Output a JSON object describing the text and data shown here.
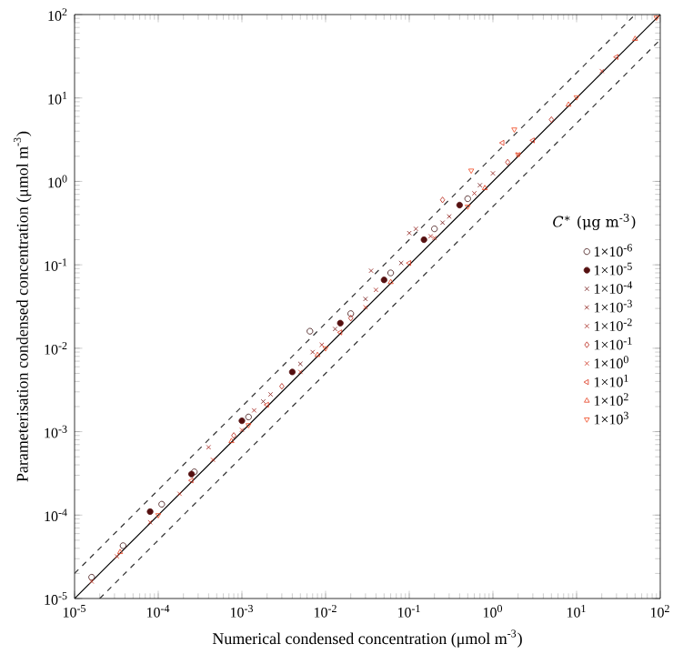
{
  "chart_data": {
    "type": "scatter",
    "xlabel": "Numerical condensed concentration (μmol m$^{-3}$)",
    "ylabel": "Parameterisation condensed concentration (μmol m$^{-3}$)",
    "legend_title": "*C*$^{∗}$ (μg m$^{-3}$)",
    "log": "xy",
    "legend": "right",
    "xlim": [
      1e-05,
      100
    ],
    "ylim": [
      1e-05,
      100
    ],
    "xticks": [
      {
        "value": 1e-05,
        "label": "10$^{-5}$"
      },
      {
        "value": 0.0001,
        "label": "10$^{-4}$"
      },
      {
        "value": 0.001,
        "label": "10$^{-3}$"
      },
      {
        "value": 0.01,
        "label": "10$^{-2}$"
      },
      {
        "value": 0.1,
        "label": "10$^{-1}$"
      },
      {
        "value": 1,
        "label": "10$^{0}$"
      },
      {
        "value": 10,
        "label": "10$^{1}$"
      },
      {
        "value": 100,
        "label": "10$^{2}$"
      }
    ],
    "yticks": [
      {
        "value": 1e-05,
        "label": "10$^{-5}$"
      },
      {
        "value": 0.0001,
        "label": "10$^{-4}$"
      },
      {
        "value": 0.001,
        "label": "10$^{-3}$"
      },
      {
        "value": 0.01,
        "label": "10$^{-2}$"
      },
      {
        "value": 0.1,
        "label": "10$^{-1}$"
      },
      {
        "value": 1,
        "label": "10$^{0}$"
      },
      {
        "value": 10,
        "label": "10$^{1}$"
      },
      {
        "value": 100,
        "label": "10$^{2}$"
      }
    ],
    "series": [
      {
        "name": "1×10$^{-6}$",
        "color": "#3a0c0c",
        "marker": "circle",
        "x": [
          1.6e-05,
          3.8e-05,
          0.00011,
          0.00027,
          0.0012,
          0.0065,
          0.02,
          0.06,
          0.2,
          0.5
        ],
        "values": [
          1.8e-05,
          4.3e-05,
          0.000135,
          0.00033,
          0.0015,
          0.016,
          0.026,
          0.08,
          0.27,
          0.62
        ]
      },
      {
        "name": "1×10$^{-5}$",
        "color": "#551010",
        "marker": "circle-filled",
        "x": [
          8e-05,
          0.00025,
          0.001,
          0.004,
          0.015,
          0.05,
          0.15,
          0.4
        ],
        "values": [
          0.00011,
          0.00031,
          0.00135,
          0.0052,
          0.02,
          0.066,
          0.2,
          0.52
        ]
      },
      {
        "name": "1×10$^{-4}$",
        "color": "#701212",
        "marker": "cross",
        "x": [
          0.0018,
          0.005,
          0.013,
          0.03,
          0.08,
          0.25,
          0.7
        ],
        "values": [
          0.0023,
          0.0065,
          0.017,
          0.039,
          0.105,
          0.32,
          0.9
        ]
      },
      {
        "name": "1×10$^{-3}$",
        "color": "#8a1612",
        "marker": "cross",
        "x": [
          0.0022,
          0.007,
          0.035,
          0.1,
          0.12,
          0.3,
          1.0
        ],
        "values": [
          0.0028,
          0.009,
          0.085,
          0.24,
          0.27,
          0.38,
          1.25
        ]
      },
      {
        "name": "1×10$^{-2}$",
        "color": "#a21c14",
        "marker": "cross",
        "x": [
          0.0004,
          0.0014,
          0.009,
          0.04,
          0.18,
          0.6
        ],
        "values": [
          0.00065,
          0.0018,
          0.011,
          0.05,
          0.22,
          0.72
        ]
      },
      {
        "name": "1×10$^{-1}$",
        "color": "#b82416",
        "marker": "diamond",
        "x": [
          0.0008,
          0.003,
          0.02,
          0.25,
          1.5,
          5
        ],
        "values": [
          0.0009,
          0.0035,
          0.023,
          0.6,
          1.7,
          5.5
        ]
      },
      {
        "name": "1×10$^{0}$",
        "color": "#cc2c18",
        "marker": "cross",
        "x": [
          1.6e-05,
          3.2e-05,
          8e-05,
          0.00018,
          0.00045,
          0.001,
          0.005,
          0.03,
          0.2,
          2,
          20
        ],
        "values": [
          1.6e-05,
          3.2e-05,
          8.2e-05,
          0.00018,
          0.00046,
          0.00105,
          0.0052,
          0.031,
          0.21,
          2.1,
          21
        ]
      },
      {
        "name": "1×10$^{1}$",
        "color": "#dc341a",
        "marker": "triangle-left",
        "x": [
          0.00025,
          0.002,
          0.015,
          0.1,
          1.3,
          3,
          30
        ],
        "values": [
          0.00026,
          0.0021,
          0.0155,
          0.105,
          2.9,
          3.1,
          31
        ]
      },
      {
        "name": "1×10$^{2}$",
        "color": "#e63c1c",
        "marker": "triangle",
        "x": [
          3.5e-05,
          0.00075,
          0.008,
          0.06,
          0.8,
          8,
          50
        ],
        "values": [
          3.6e-05,
          0.00077,
          0.0083,
          0.062,
          0.83,
          8.3,
          51
        ]
      },
      {
        "name": "1×10$^{3}$",
        "color": "#f0461e",
        "marker": "triangle-down",
        "x": [
          0.0001,
          0.0012,
          0.01,
          0.5,
          0.55,
          1.8,
          2,
          10,
          90
        ],
        "values": [
          0.0001,
          0.0012,
          0.01,
          0.5,
          1.35,
          4.2,
          2.1,
          10.2,
          92
        ]
      },
      {
        "type": "line",
        "color": "#000000",
        "line_style": "solid",
        "x": [
          1e-05,
          100
        ],
        "values": [
          1e-05,
          100
        ]
      },
      {
        "type": "line",
        "color": "#333333",
        "line_style": "dashed",
        "x": [
          1e-05,
          50
        ],
        "values": [
          2e-05,
          100
        ]
      },
      {
        "type": "line",
        "color": "#333333",
        "line_style": "dashed",
        "x": [
          2e-05,
          100
        ],
        "values": [
          1e-05,
          50
        ]
      }
    ]
  }
}
